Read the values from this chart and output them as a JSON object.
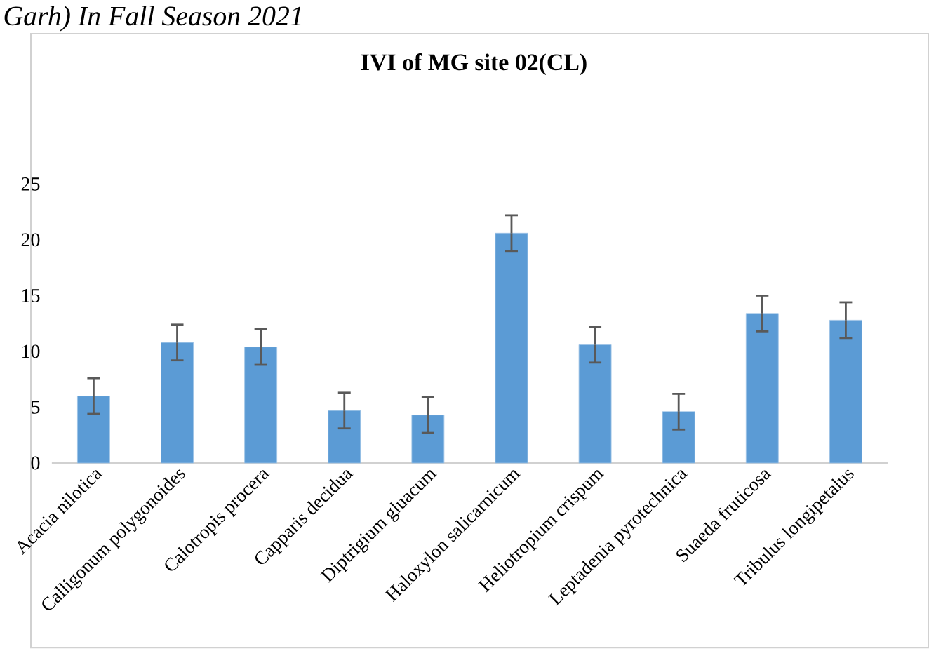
{
  "chart_data": {
    "type": "bar",
    "title": "IVI of MG site 02(CL)",
    "annotations": [
      "Garh) In Fall Season 2021"
    ],
    "categories": [
      "Acacia nilotica",
      "Calligonum polygonoides",
      "Calotropis procera",
      "Capparis decidua",
      "Diptrigium gluacum",
      "Haloxylon salicarnicum",
      "Heliotropium crispum",
      "Leptadenia pyrotechnica",
      "Suaeda fruticosa",
      "Tribulus longipetalus"
    ],
    "values": [
      6.0,
      10.8,
      10.4,
      4.7,
      4.3,
      20.6,
      10.6,
      4.6,
      13.4,
      12.8
    ],
    "errors": [
      1.6,
      1.6,
      1.6,
      1.6,
      1.6,
      1.6,
      1.6,
      1.6,
      1.6,
      1.6
    ],
    "color": "#5b9bd5",
    "ylim": [
      0,
      25
    ],
    "yticks": [
      0,
      5,
      10,
      15,
      20,
      25
    ]
  }
}
